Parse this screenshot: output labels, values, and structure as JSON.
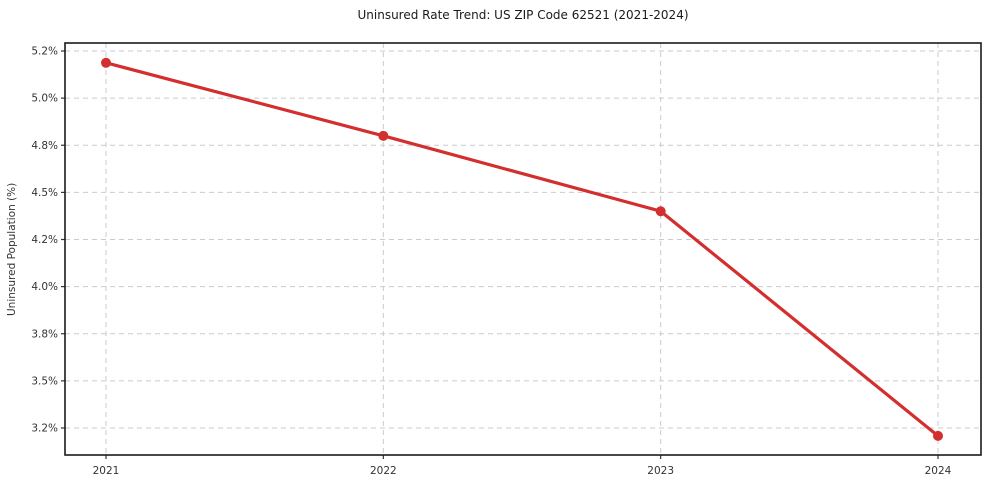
{
  "chart_data": {
    "type": "line",
    "title": "Uninsured Rate Trend: US ZIP Code 62521 (2021-2024)",
    "xlabel": "",
    "ylabel": "Uninsured Population (%)",
    "categories": [
      "2021",
      "2022",
      "2023",
      "2024"
    ],
    "series": [
      {
        "values": [
          5.15,
          4.84,
          4.38,
          3.15
        ],
        "color": "#d32f2f",
        "marker": "circle"
      }
    ],
    "ytick_labels": [
      "5.2%",
      "5.0%",
      "4.8%",
      "4.5%",
      "4.2%",
      "4.0%",
      "3.8%",
      "3.5%",
      "3.2%"
    ],
    "grid": true,
    "legend": "none",
    "line_color": "#d32f2f",
    "grid_color": "#cbcbcb"
  }
}
